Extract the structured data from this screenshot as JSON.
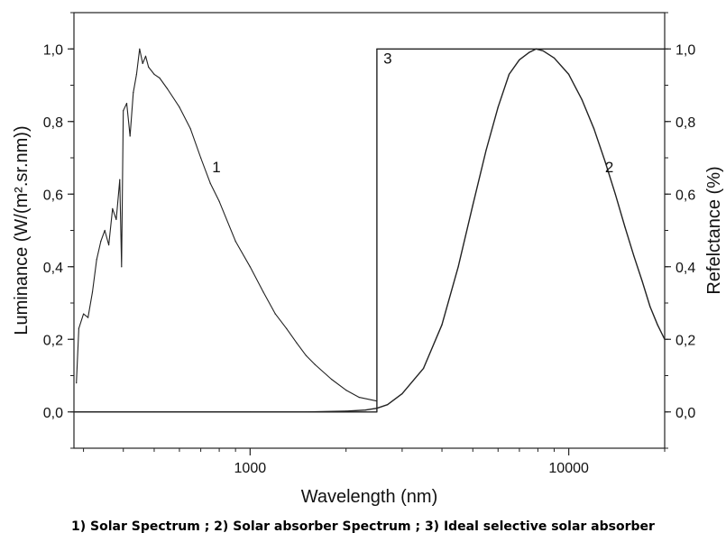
{
  "caption": "1) Solar Spectrum ; 2) Solar absorber Spectrum ; 3) Ideal selective solar absorber",
  "chart_data": {
    "type": "line",
    "title": "",
    "xlabel": "Wavelength (nm)",
    "ylabel_left": "Luminance (W/(m².sr.nm))",
    "ylabel_right": "Refelctance (%)",
    "x_scale": "log",
    "xlim": [
      280,
      20000
    ],
    "ylim": [
      -0.1,
      1.1
    ],
    "x_ticks": [
      1000,
      10000
    ],
    "x_tick_labels": [
      "1000",
      "10000"
    ],
    "y_ticks": [
      0.0,
      0.2,
      0.4,
      0.6,
      0.8,
      1.0
    ],
    "y_tick_labels_left": [
      "0,0",
      "0,2",
      "0,4",
      "0,6",
      "0,8",
      "1,0"
    ],
    "y_tick_labels_right": [
      "0,0",
      "0,2",
      "0,4",
      "0,6",
      "0,8",
      "1,0"
    ],
    "grid": false,
    "line_color": "#222222",
    "series": [
      {
        "name": "1",
        "label_x": 760,
        "label_y": 0.66,
        "x": [
          285,
          290,
          300,
          310,
          320,
          330,
          340,
          350,
          360,
          370,
          380,
          390,
          395,
          400,
          410,
          420,
          430,
          440,
          450,
          460,
          470,
          480,
          500,
          520,
          550,
          600,
          650,
          700,
          750,
          800,
          900,
          1000,
          1100,
          1200,
          1300,
          1400,
          1500,
          1600,
          1800,
          2000,
          2200,
          2500
        ],
        "y": [
          0.08,
          0.23,
          0.27,
          0.26,
          0.33,
          0.42,
          0.47,
          0.5,
          0.46,
          0.56,
          0.53,
          0.64,
          0.4,
          0.83,
          0.85,
          0.76,
          0.88,
          0.93,
          1.0,
          0.96,
          0.98,
          0.95,
          0.93,
          0.92,
          0.89,
          0.84,
          0.78,
          0.7,
          0.63,
          0.58,
          0.47,
          0.4,
          0.33,
          0.27,
          0.23,
          0.19,
          0.155,
          0.13,
          0.09,
          0.06,
          0.04,
          0.03
        ]
      },
      {
        "name": "2",
        "label_x": 13000,
        "label_y": 0.66,
        "x": [
          280,
          500,
          1000,
          1500,
          2000,
          2300,
          2500,
          2700,
          3000,
          3500,
          4000,
          4500,
          5000,
          5500,
          6000,
          6500,
          7000,
          7500,
          7900,
          8300,
          9000,
          10000,
          11000,
          12000,
          13000,
          14000,
          15000,
          16000,
          17000,
          18000,
          19000,
          20000
        ],
        "y": [
          0.0,
          0.0,
          0.0,
          0.0,
          0.002,
          0.005,
          0.01,
          0.02,
          0.05,
          0.12,
          0.24,
          0.4,
          0.57,
          0.72,
          0.84,
          0.93,
          0.97,
          0.99,
          1.0,
          0.995,
          0.975,
          0.93,
          0.86,
          0.78,
          0.69,
          0.6,
          0.51,
          0.43,
          0.36,
          0.29,
          0.24,
          0.2
        ]
      },
      {
        "name": "3",
        "label_x": 2620,
        "label_y": 0.96,
        "x": [
          280,
          2500,
          2500,
          20000
        ],
        "y": [
          0.0,
          0.0,
          1.0,
          1.0
        ]
      }
    ]
  }
}
